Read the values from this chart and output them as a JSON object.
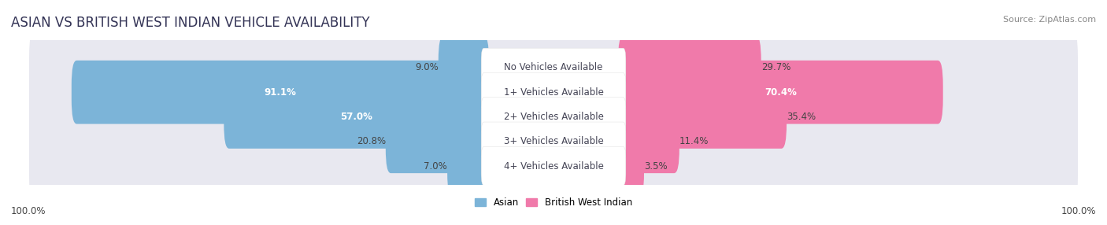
{
  "title": "ASIAN VS BRITISH WEST INDIAN VEHICLE AVAILABILITY",
  "source": "Source: ZipAtlas.com",
  "categories": [
    "No Vehicles Available",
    "1+ Vehicles Available",
    "2+ Vehicles Available",
    "3+ Vehicles Available",
    "4+ Vehicles Available"
  ],
  "asian_values": [
    9.0,
    91.1,
    57.0,
    20.8,
    7.0
  ],
  "bwi_values": [
    29.7,
    70.4,
    35.4,
    11.4,
    3.5
  ],
  "asian_color": "#7cb4d8",
  "bwi_color": "#f07aaa",
  "label_bg_color": "#ffffff",
  "bar_bg_color": "#e8e8f0",
  "row_bg_color": "#f0f0f8",
  "title_fontsize": 12,
  "source_fontsize": 8,
  "label_fontsize": 8.5,
  "value_fontsize": 8.5,
  "max_val": 100.0,
  "bar_height": 0.58,
  "background_color": "#ffffff",
  "title_color": "#333355",
  "value_color_dark": "#444444",
  "value_color_light": "#ffffff"
}
